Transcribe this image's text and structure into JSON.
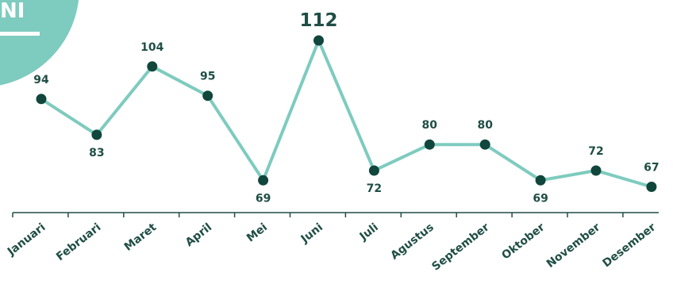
{
  "badge": {
    "text": "NI",
    "color": "#7ecbbf"
  },
  "colors": {
    "line": "#7ecbbf",
    "point": "#10463c",
    "axis": "#1f4e45",
    "label": "#1f4e45"
  },
  "chart_data": {
    "type": "line",
    "title": "",
    "xlabel": "",
    "ylabel": "",
    "grid": false,
    "categories": [
      "Januari",
      "Februari",
      "Maret",
      "April",
      "Mei",
      "Juni",
      "Juli",
      "Agustus",
      "September",
      "Oktober",
      "November",
      "Desember"
    ],
    "series": [
      {
        "values": [
          94,
          83,
          104,
          95,
          69,
          112,
          72,
          80,
          80,
          69,
          72,
          67
        ]
      }
    ],
    "data_labels": [
      "94",
      "83",
      "104",
      "95",
      "69",
      "112",
      "72",
      "80",
      "80",
      "69",
      "72",
      "67"
    ],
    "highlight_max": true
  }
}
